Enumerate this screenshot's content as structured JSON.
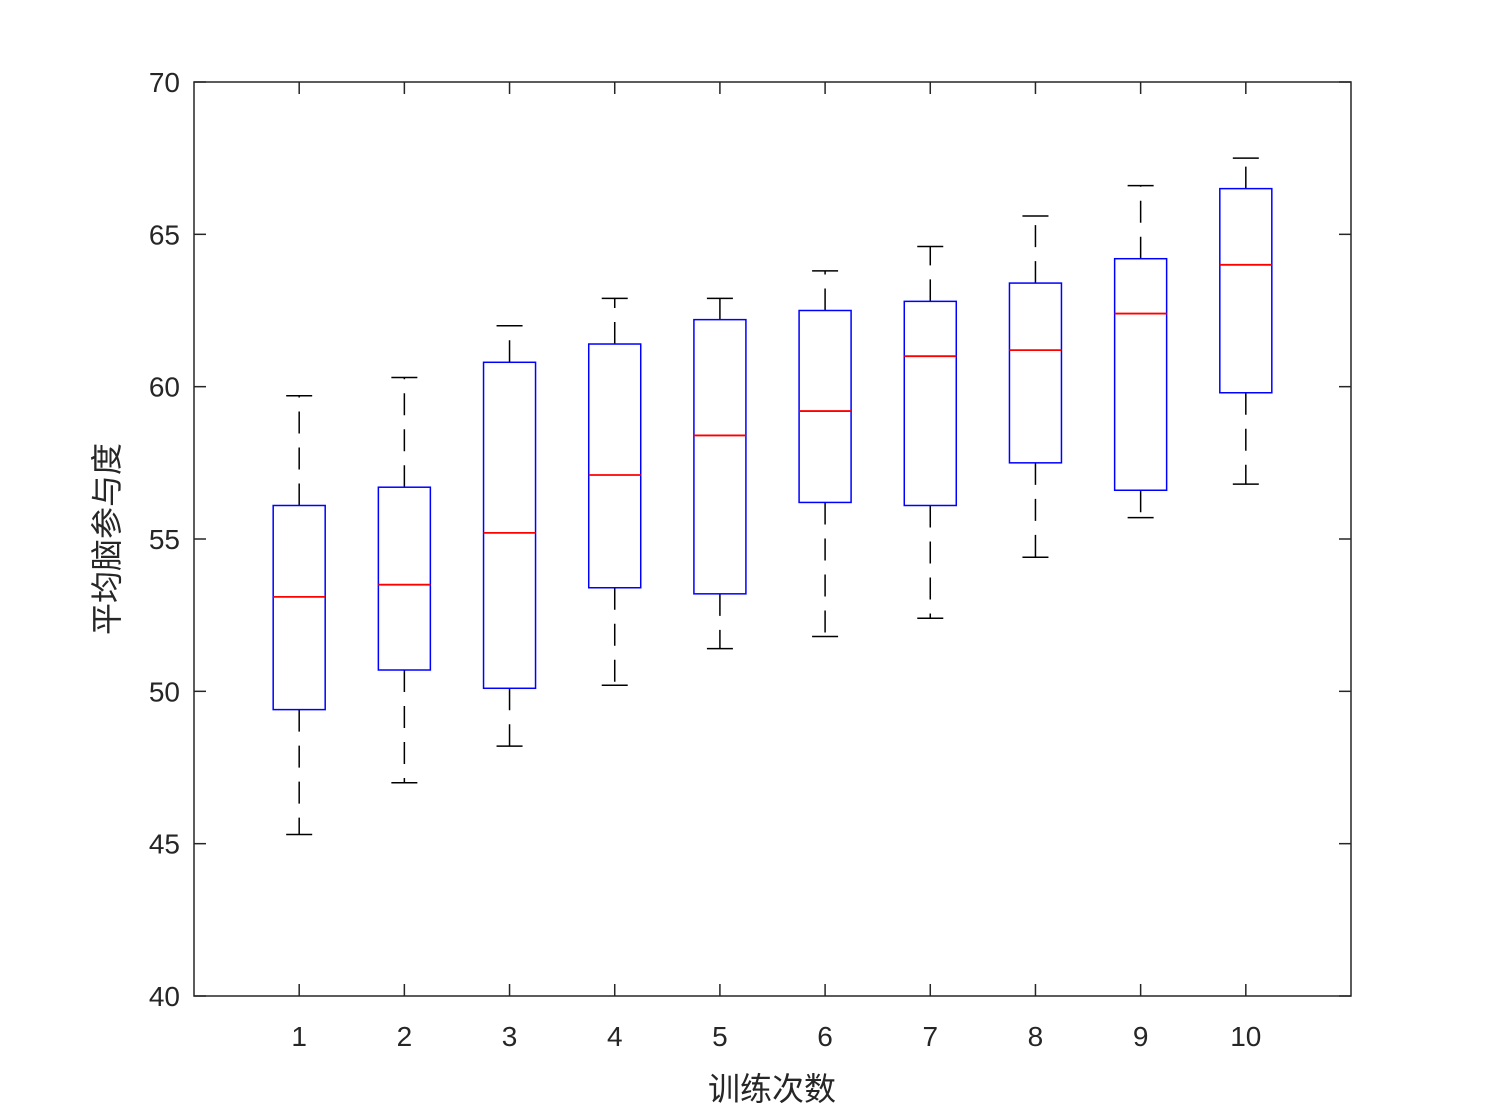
{
  "chart_data": {
    "type": "boxplot",
    "xlabel": "训练次数",
    "ylabel": "平均脑参与度",
    "ylim": [
      40,
      70
    ],
    "yticks": [
      40,
      45,
      50,
      55,
      60,
      65,
      70
    ],
    "categories": [
      "1",
      "2",
      "3",
      "4",
      "5",
      "6",
      "7",
      "8",
      "9",
      "10"
    ],
    "boxes": [
      {
        "category": "1",
        "whisker_low": 45.3,
        "q1": 49.4,
        "median": 53.1,
        "q3": 56.1,
        "whisker_high": 59.7
      },
      {
        "category": "2",
        "whisker_low": 47.0,
        "q1": 50.7,
        "median": 53.5,
        "q3": 56.7,
        "whisker_high": 60.3
      },
      {
        "category": "3",
        "whisker_low": 48.2,
        "q1": 50.1,
        "median": 55.2,
        "q3": 60.8,
        "whisker_high": 62.0
      },
      {
        "category": "4",
        "whisker_low": 50.2,
        "q1": 53.4,
        "median": 57.1,
        "q3": 61.4,
        "whisker_high": 62.9
      },
      {
        "category": "5",
        "whisker_low": 51.4,
        "q1": 53.2,
        "median": 58.4,
        "q3": 62.2,
        "whisker_high": 62.9
      },
      {
        "category": "6",
        "whisker_low": 51.8,
        "q1": 56.2,
        "median": 59.2,
        "q3": 62.5,
        "whisker_high": 63.8
      },
      {
        "category": "7",
        "whisker_low": 52.4,
        "q1": 56.1,
        "median": 61.0,
        "q3": 62.8,
        "whisker_high": 64.6
      },
      {
        "category": "8",
        "whisker_low": 54.4,
        "q1": 57.5,
        "median": 61.2,
        "q3": 63.4,
        "whisker_high": 65.6
      },
      {
        "category": "9",
        "whisker_low": 55.7,
        "q1": 56.6,
        "median": 62.4,
        "q3": 64.2,
        "whisker_high": 66.6
      },
      {
        "category": "10",
        "whisker_low": 56.8,
        "q1": 59.8,
        "median": 64.0,
        "q3": 66.5,
        "whisker_high": 67.5
      }
    ],
    "colors": {
      "box": "#0000ff",
      "median": "#ff0000",
      "whisker": "#000000",
      "axis": "#262626"
    },
    "grid": false
  }
}
